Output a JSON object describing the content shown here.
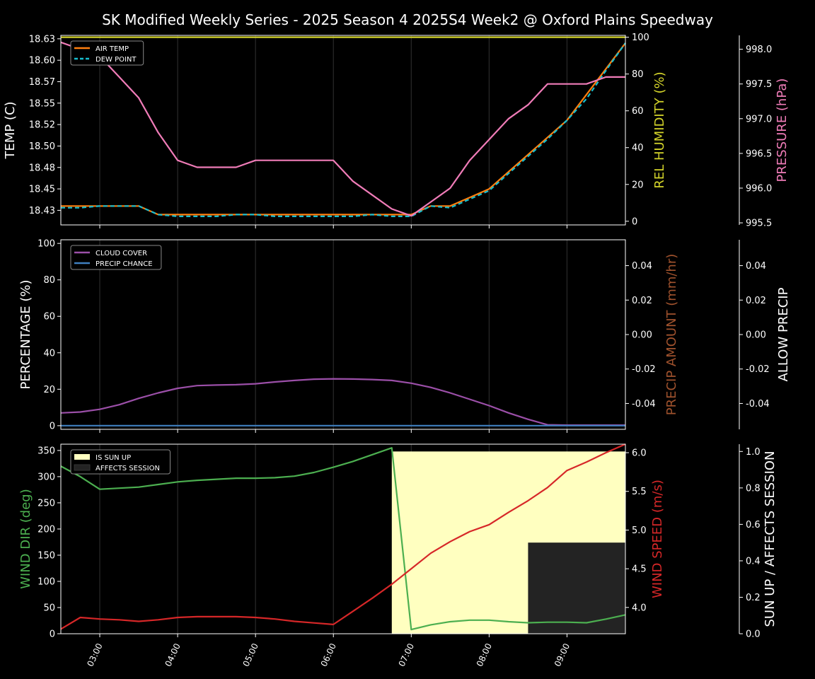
{
  "title": "SK Modified Weekly Series - 2025 Season 4 2025S4 Week2 @ Oxford Plains Speedway",
  "colors": {
    "air_temp": "#ff7f0e",
    "dew_point": "#17becf",
    "humidity": "#d4d42a",
    "pressure": "#f07cb8",
    "cloud": "#9b4fa8",
    "precip_chance": "#3f7fbf",
    "precip_amount": "#a0522d",
    "wind_dir": "#4caf50",
    "wind_speed": "#d62728",
    "sun_up": "#ffffc0",
    "affects": "#232323"
  },
  "chart_data": [
    {
      "type": "line",
      "panel": "top",
      "xlabel": "",
      "ylabel": "TEMP (C)",
      "ylabel_right": "REL HUMIDITY (%)",
      "ylabel_right2": "PRESSURE (hPa)",
      "ylim": [
        18.408,
        18.629
      ],
      "ylim_right": [
        -2,
        101
      ],
      "ylim_right2": [
        995.47,
        998.2
      ],
      "yticks": [
        18.425,
        18.45,
        18.475,
        18.5,
        18.525,
        18.55,
        18.575,
        18.6,
        18.625
      ],
      "yticks_right": [
        0,
        20,
        40,
        60,
        80,
        100
      ],
      "yticks_right2": [
        995.5,
        996.0,
        996.5,
        997.0,
        997.5,
        998.0
      ],
      "legend": [
        "AIR TEMP",
        "DEW POINT"
      ],
      "legend_position": "top-left",
      "x": [
        2.5,
        2.75,
        3.0,
        3.25,
        3.5,
        3.75,
        4.0,
        4.25,
        4.5,
        4.75,
        5.0,
        5.25,
        5.5,
        5.75,
        6.0,
        6.25,
        6.5,
        6.75,
        7.0,
        7.25,
        7.5,
        7.75,
        8.0,
        8.25,
        8.5,
        8.75,
        9.0,
        9.25,
        9.5,
        9.75
      ],
      "series": [
        {
          "name": "AIR TEMP",
          "axis": "left",
          "values": [
            18.43,
            18.43,
            18.43,
            18.43,
            18.43,
            18.42,
            18.42,
            18.42,
            18.42,
            18.42,
            18.42,
            18.42,
            18.42,
            18.42,
            18.42,
            18.42,
            18.42,
            18.42,
            18.42,
            18.43,
            18.43,
            18.44,
            18.45,
            18.47,
            18.49,
            18.51,
            18.53,
            18.56,
            18.59,
            18.62
          ]
        },
        {
          "name": "DEW POINT",
          "axis": "left",
          "values": [
            18.428,
            18.428,
            18.43,
            18.43,
            18.43,
            18.42,
            18.418,
            18.418,
            18.418,
            18.42,
            18.42,
            18.418,
            18.418,
            18.418,
            18.418,
            18.418,
            18.42,
            18.418,
            18.418,
            18.43,
            18.428,
            18.438,
            18.448,
            18.468,
            18.488,
            18.508,
            18.53,
            18.555,
            18.588,
            18.62
          ]
        },
        {
          "name": "REL HUMIDITY",
          "axis": "right",
          "values": [
            100,
            100,
            100,
            100,
            100,
            100,
            100,
            100,
            100,
            100,
            100,
            100,
            100,
            100,
            100,
            100,
            100,
            100,
            100,
            100,
            100,
            100,
            100,
            100,
            100,
            100,
            100,
            100,
            100,
            100
          ]
        },
        {
          "name": "PRESSURE",
          "axis": "right2",
          "values": [
            998.1,
            998.0,
            997.9,
            997.6,
            997.3,
            996.8,
            996.4,
            996.3,
            996.3,
            996.3,
            996.4,
            996.4,
            996.4,
            996.4,
            996.4,
            996.1,
            995.9,
            995.7,
            995.6,
            995.8,
            996.0,
            996.4,
            996.7,
            997.0,
            997.2,
            997.5,
            997.5,
            997.5,
            997.6,
            997.6
          ]
        }
      ]
    },
    {
      "type": "line",
      "panel": "middle",
      "xlabel": "",
      "ylabel": "PERCENTAGE (%)",
      "ylabel_right": "PRECIP AMOUNT (mm/hr)",
      "ylabel_right2": "ALLOW PRECIP",
      "ylim": [
        -2,
        102
      ],
      "ylim_right": [
        -0.055,
        0.055
      ],
      "ylim_right2": [
        -0.055,
        0.055
      ],
      "yticks": [
        0,
        20,
        40,
        60,
        80,
        100
      ],
      "yticks_right": [
        -0.04,
        -0.02,
        0.0,
        0.02,
        0.04
      ],
      "yticks_right2": [
        -0.04,
        -0.02,
        0.0,
        0.02,
        0.04
      ],
      "legend": [
        "CLOUD COVER",
        "PRECIP CHANCE"
      ],
      "legend_position": "top-left",
      "x": [
        2.5,
        2.75,
        3.0,
        3.25,
        3.5,
        3.75,
        4.0,
        4.25,
        4.5,
        4.75,
        5.0,
        5.25,
        5.5,
        5.75,
        6.0,
        6.25,
        6.5,
        6.75,
        7.0,
        7.25,
        7.5,
        7.75,
        8.0,
        8.25,
        8.5,
        8.75,
        9.0,
        9.25,
        9.5,
        9.75
      ],
      "series": [
        {
          "name": "CLOUD COVER",
          "axis": "left",
          "values": [
            7,
            7.5,
            9,
            11.5,
            15,
            18,
            20.5,
            22,
            22.3,
            22.5,
            23,
            24,
            24.8,
            25.5,
            25.7,
            25.6,
            25.3,
            24.8,
            23.3,
            21,
            18,
            14.5,
            11,
            7,
            3.5,
            0.5,
            0.3,
            0.3,
            0.3,
            0.3
          ]
        },
        {
          "name": "PRECIP CHANCE",
          "axis": "left",
          "values": [
            0,
            0,
            0,
            0,
            0,
            0,
            0,
            0,
            0,
            0,
            0,
            0,
            0,
            0,
            0,
            0,
            0,
            0,
            0,
            0,
            0,
            0,
            0,
            0,
            0,
            0,
            0,
            0,
            0,
            0
          ]
        }
      ]
    },
    {
      "type": "line",
      "panel": "bottom",
      "xlabel": "",
      "ylabel": "WIND DIR (deg)",
      "ylabel_right": "WIND SPEED (m/s)",
      "ylabel_right2": "SUN UP / AFFECTS SESSION",
      "ylim": [
        0,
        362
      ],
      "ylim_right": [
        3.66,
        6.11
      ],
      "ylim_right2": [
        0,
        1.04
      ],
      "yticks": [
        0,
        50,
        100,
        150,
        200,
        250,
        300,
        350
      ],
      "yticks_right": [
        4.0,
        4.5,
        5.0,
        5.5,
        6.0
      ],
      "yticks_right2": [
        0.0,
        0.2,
        0.4,
        0.6,
        0.8,
        1.0
      ],
      "legend": [
        "IS SUN UP",
        "AFFECTS SESSION"
      ],
      "legend_position": "top-left",
      "xticks": [
        "03:00",
        "04:00",
        "05:00",
        "06:00",
        "07:00",
        "08:00",
        "09:00"
      ],
      "xtick_values": [
        3,
        4,
        5,
        6,
        7,
        8,
        9
      ],
      "xlim": [
        2.5,
        9.75
      ],
      "x": [
        2.5,
        2.75,
        3.0,
        3.25,
        3.5,
        3.75,
        4.0,
        4.25,
        4.5,
        4.75,
        5.0,
        5.25,
        5.5,
        5.75,
        6.0,
        6.25,
        6.5,
        6.75,
        7.0,
        7.25,
        7.5,
        7.75,
        8.0,
        8.25,
        8.5,
        8.75,
        9.0,
        9.25,
        9.5,
        9.75
      ],
      "series": [
        {
          "name": "WIND DIR",
          "axis": "left",
          "values": [
            320,
            300,
            276,
            278,
            280,
            285,
            290,
            293,
            295,
            297,
            297,
            298,
            301,
            308,
            318,
            329,
            342,
            355,
            8,
            17,
            23,
            26,
            26,
            23,
            21,
            22,
            22,
            21,
            28,
            36
          ]
        },
        {
          "name": "WIND SPEED",
          "axis": "right",
          "values": [
            3.72,
            3.87,
            3.85,
            3.84,
            3.82,
            3.84,
            3.87,
            3.88,
            3.88,
            3.88,
            3.87,
            3.85,
            3.82,
            3.8,
            3.78,
            3.95,
            4.12,
            4.3,
            4.5,
            4.7,
            4.85,
            4.98,
            5.07,
            5.23,
            5.38,
            5.55,
            5.77,
            5.88,
            6.0,
            6.11
          ]
        }
      ],
      "spans": [
        {
          "name": "IS SUN UP",
          "x_from": 6.75,
          "x_to": 9.75,
          "value": 1.0
        },
        {
          "name": "AFFECTS SESSION",
          "x_from": 8.5,
          "x_to": 9.75,
          "value": 0.5
        }
      ]
    }
  ]
}
